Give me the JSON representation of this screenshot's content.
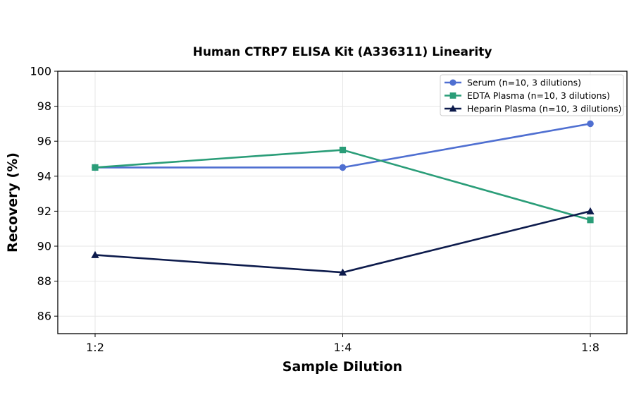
{
  "chart_data": {
    "type": "line",
    "title": "Human CTRP7 ELISA Kit (A336311) Linearity",
    "xlabel": "Sample Dilution",
    "ylabel": "Recovery (%)",
    "categories": [
      "1:2",
      "1:4",
      "1:8"
    ],
    "ylim": [
      85,
      100
    ],
    "yticks": [
      86,
      88,
      90,
      92,
      94,
      96,
      98,
      100
    ],
    "grid": true,
    "legend_position": "top-right",
    "series": [
      {
        "name": "Serum (n=10, 3 dilutions)",
        "values": [
          94.5,
          94.5,
          97.0
        ],
        "color": "#4f6fd1",
        "marker": "circle"
      },
      {
        "name": "EDTA Plasma (n=10, 3 dilutions)",
        "values": [
          94.5,
          95.5,
          91.5
        ],
        "color": "#2a9d78",
        "marker": "square"
      },
      {
        "name": "Heparin Plasma (n=10, 3 dilutions)",
        "values": [
          89.5,
          88.5,
          92.0
        ],
        "color": "#0d1b4c",
        "marker": "triangle"
      }
    ]
  }
}
